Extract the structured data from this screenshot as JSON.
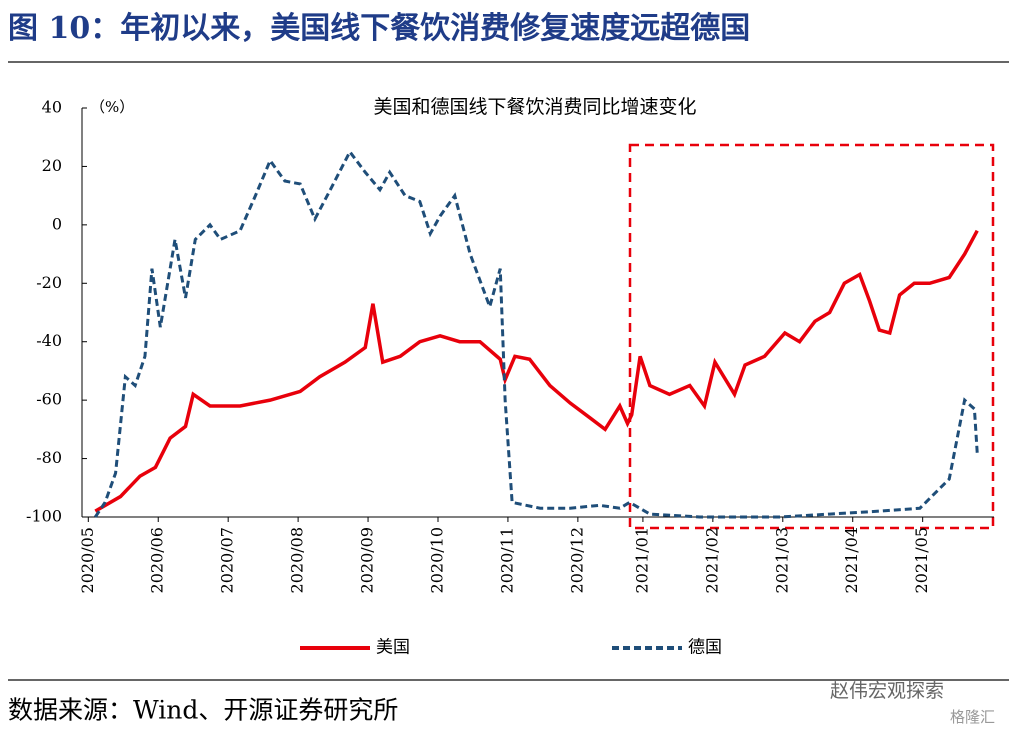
{
  "header": {
    "title": "图 10：年初以来，美国线下餐饮消费修复速度远超德国"
  },
  "chart_data": {
    "type": "line",
    "title": "美国和德国线下餐饮消费同比增速变化",
    "y_label": "（%）",
    "xlim": [
      -0.09,
      12.95
    ],
    "ylim": [
      -100,
      40
    ],
    "yticks": [
      -100,
      -80,
      -60,
      -40,
      -20,
      0,
      20,
      40
    ],
    "xticks": [
      {
        "value": 0,
        "label": "2020/05"
      },
      {
        "value": 1,
        "label": "2020/06"
      },
      {
        "value": 2,
        "label": "2020/07"
      },
      {
        "value": 3,
        "label": "2020/08"
      },
      {
        "value": 4,
        "label": "2020/09"
      },
      {
        "value": 5,
        "label": "2020/10"
      },
      {
        "value": 6,
        "label": "2020/11"
      },
      {
        "value": 7,
        "label": "2020/12"
      },
      {
        "value": 7.93,
        "label": "2021/01"
      },
      {
        "value": 8.93,
        "label": "2021/02"
      },
      {
        "value": 9.93,
        "label": "2021/03"
      },
      {
        "value": 10.93,
        "label": "2021/04"
      },
      {
        "value": 11.93,
        "label": "2021/05"
      }
    ],
    "series": [
      {
        "name": "美国",
        "color": "#e8000b",
        "dash": false,
        "x": [
          0.1,
          0.46,
          0.74,
          0.96,
          1.17,
          1.39,
          1.5,
          1.74,
          2.17,
          2.6,
          3.03,
          3.31,
          3.67,
          3.96,
          4.07,
          4.21,
          4.46,
          4.74,
          5.03,
          5.31,
          5.6,
          5.89,
          5.96,
          6.1,
          6.31,
          6.6,
          6.89,
          7.17,
          7.39,
          7.6,
          7.71,
          7.77,
          7.89,
          8.03,
          8.31,
          8.6,
          8.81,
          8.96,
          9.24,
          9.39,
          9.67,
          9.96,
          10.17,
          10.39,
          10.6,
          10.81,
          11.03,
          11.17,
          11.31,
          11.46,
          11.6,
          11.81,
          12.03,
          12.31,
          12.53,
          12.71
        ],
        "values": [
          -98,
          -93,
          -86,
          -83,
          -73,
          -69,
          -58,
          -62,
          -62,
          -60,
          -57,
          -52,
          -47,
          -42,
          -27,
          -47,
          -45,
          -40,
          -38,
          -40,
          -40,
          -46,
          -53,
          -45,
          -46,
          -55,
          -61,
          -66,
          -70,
          -62,
          -68,
          -65,
          -45,
          -55,
          -58,
          -55,
          -62,
          -47,
          -58,
          -48,
          -45,
          -37,
          -40,
          -33,
          -30,
          -20,
          -17,
          -26,
          -36,
          -37,
          -24,
          -20,
          -20,
          -18,
          -10,
          -2
        ]
      },
      {
        "name": "德国",
        "color": "#1f4e79",
        "dash": true,
        "x": [
          0.1,
          0.24,
          0.39,
          0.53,
          0.67,
          0.81,
          0.91,
          1.03,
          1.24,
          1.39,
          1.53,
          1.74,
          1.89,
          2.17,
          2.39,
          2.6,
          2.81,
          3.03,
          3.24,
          3.46,
          3.74,
          3.96,
          4.17,
          4.31,
          4.53,
          4.74,
          4.89,
          5.03,
          5.24,
          5.46,
          5.74,
          5.89,
          5.96,
          6.06,
          6.46,
          6.89,
          7.31,
          7.6,
          7.74,
          8.03,
          8.74,
          9.89,
          10.6,
          11.31,
          11.89,
          12.31,
          12.53,
          12.67,
          12.71
        ],
        "values": [
          -100,
          -95,
          -85,
          -52,
          -55,
          -45,
          -15,
          -35,
          -5,
          -25,
          -5,
          0,
          -5,
          -2,
          10,
          22,
          15,
          14,
          2,
          12,
          25,
          18,
          12,
          18,
          10,
          8,
          -3,
          3,
          10,
          -10,
          -28,
          -15,
          -60,
          -95,
          -97,
          -97,
          -96,
          -97,
          -95,
          -99,
          -100,
          -100,
          -99,
          -98,
          -97,
          -87,
          -60,
          -63,
          -78
        ]
      }
    ]
  },
  "footer": {
    "source": "数据来源：Wind、开源证券研究所"
  },
  "watermark": [
    "赵伟宏观探索",
    "格隆汇"
  ]
}
